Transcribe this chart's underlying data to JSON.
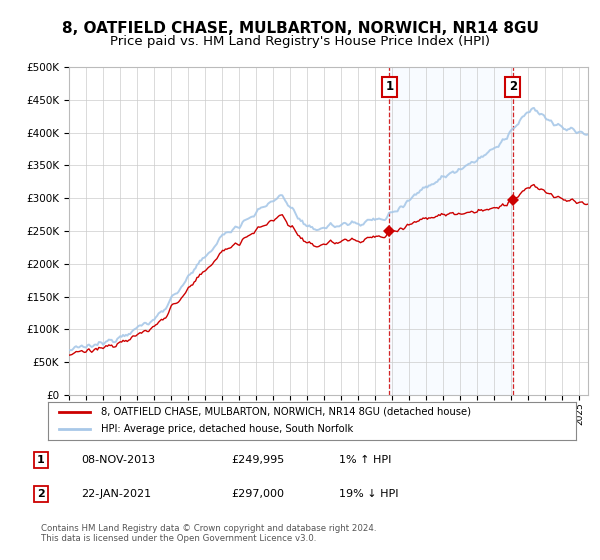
{
  "title": "8, OATFIELD CHASE, MULBARTON, NORWICH, NR14 8GU",
  "subtitle": "Price paid vs. HM Land Registry's House Price Index (HPI)",
  "ylim": [
    0,
    500000
  ],
  "yticks": [
    0,
    50000,
    100000,
    150000,
    200000,
    250000,
    300000,
    350000,
    400000,
    450000,
    500000
  ],
  "ytick_labels": [
    "£0",
    "£50K",
    "£100K",
    "£150K",
    "£200K",
    "£250K",
    "£300K",
    "£350K",
    "£400K",
    "£450K",
    "£500K"
  ],
  "hpi_color": "#a8c8e8",
  "price_color": "#cc0000",
  "sale1_date": "08-NOV-2013",
  "sale1_price": 249995,
  "sale1_hpi_text": "1% ↑ HPI",
  "sale2_date": "22-JAN-2021",
  "sale2_price": 297000,
  "sale2_hpi_text": "19% ↓ HPI",
  "legend_line1": "8, OATFIELD CHASE, MULBARTON, NORWICH, NR14 8GU (detached house)",
  "legend_line2": "HPI: Average price, detached house, South Norfolk",
  "footer": "Contains HM Land Registry data © Crown copyright and database right 2024.\nThis data is licensed under the Open Government Licence v3.0.",
  "bg_color": "#ffffff",
  "plot_bg": "#ffffff",
  "grid_color": "#cccccc",
  "shade_color": "#ddeeff",
  "vline_color": "#cc0000",
  "title_fontsize": 11,
  "subtitle_fontsize": 9.5,
  "sale1_t": 2013.833,
  "sale2_t": 2021.083
}
